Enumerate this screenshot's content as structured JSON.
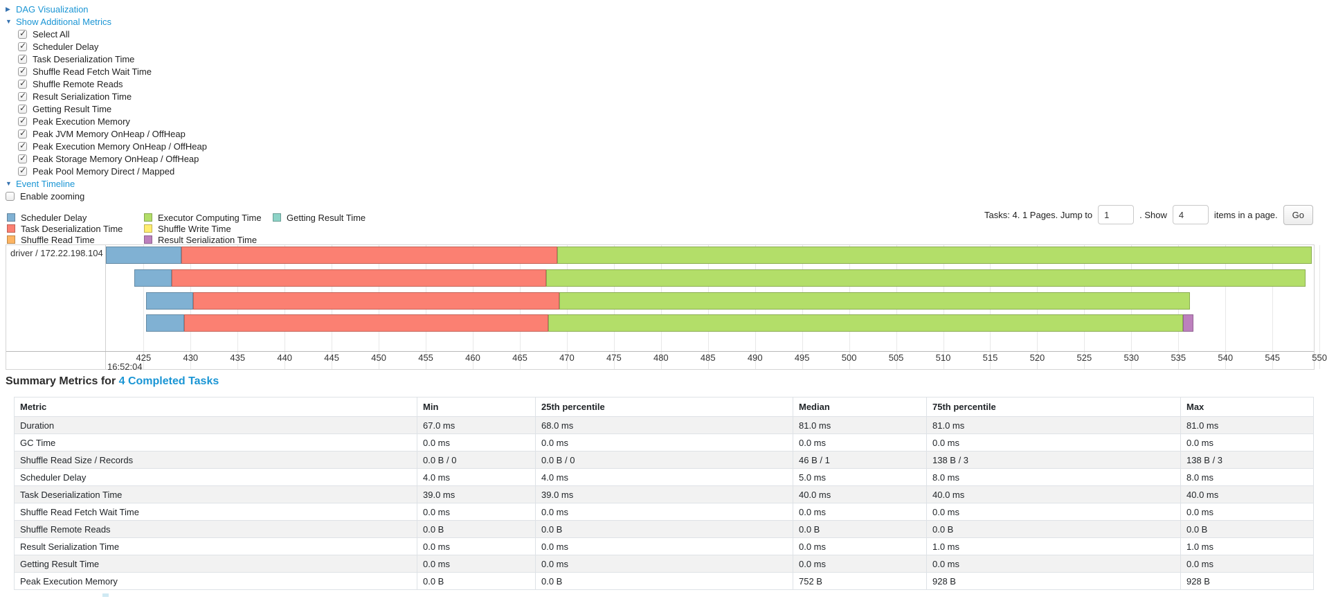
{
  "panels": {
    "dag": {
      "label": "DAG Visualization",
      "arrow": "▶"
    },
    "additional_metrics": {
      "label": "Show Additional Metrics",
      "arrow": "▼",
      "items": [
        {
          "label": "Select All",
          "checked": true
        },
        {
          "label": "Scheduler Delay",
          "checked": true
        },
        {
          "label": "Task Deserialization Time",
          "checked": true
        },
        {
          "label": "Shuffle Read Fetch Wait Time",
          "checked": true
        },
        {
          "label": "Shuffle Remote Reads",
          "checked": true
        },
        {
          "label": "Result Serialization Time",
          "checked": true
        },
        {
          "label": "Getting Result Time",
          "checked": true
        },
        {
          "label": "Peak Execution Memory",
          "checked": true
        },
        {
          "label": "Peak JVM Memory OnHeap / OffHeap",
          "checked": true
        },
        {
          "label": "Peak Execution Memory OnHeap / OffHeap",
          "checked": true
        },
        {
          "label": "Peak Storage Memory OnHeap / OffHeap",
          "checked": true
        },
        {
          "label": "Peak Pool Memory Direct / Mapped",
          "checked": true
        }
      ]
    },
    "event_timeline": {
      "label": "Event Timeline",
      "arrow": "▼",
      "enable_zooming": {
        "label": "Enable zooming",
        "checked": false
      }
    }
  },
  "pagination": {
    "tasks_text": "Tasks: 4. 1 Pages. Jump to",
    "jump_value": "1",
    "mid_text": ". Show",
    "page_size_value": "4",
    "suffix_text": "items in a page.",
    "go_label": "Go"
  },
  "colors": {
    "scheduler_delay": "#80B1D3",
    "task_deserialization": "#FB8072",
    "shuffle_read": "#FDB462",
    "executor_computing": "#B3DE69",
    "shuffle_write": "#FFED6F",
    "result_serialization": "#BC80BD",
    "getting_result": "#8DD3C7",
    "link": "#1a95d4"
  },
  "chart_data": {
    "type": "timeline",
    "group_label": "driver / 172.22.198.104",
    "axis": {
      "min": 421,
      "max": 549.4,
      "ticks": [
        425,
        430,
        435,
        440,
        445,
        450,
        455,
        460,
        465,
        470,
        475,
        480,
        485,
        490,
        495,
        500,
        505,
        510,
        515,
        520,
        525,
        530,
        535,
        540,
        545,
        550
      ],
      "major_label": "16:52:04"
    },
    "legend": [
      {
        "key": "scheduler_delay",
        "label": "Scheduler Delay"
      },
      {
        "key": "task_deserialization",
        "label": "Task Deserialization Time"
      },
      {
        "key": "shuffle_read",
        "label": "Shuffle Read Time"
      },
      {
        "key": "executor_computing",
        "label": "Executor Computing Time"
      },
      {
        "key": "shuffle_write",
        "label": "Shuffle Write Time"
      },
      {
        "key": "result_serialization",
        "label": "Result Serialization Time"
      },
      {
        "key": "getting_result",
        "label": "Getting Result Time"
      }
    ],
    "tasks": [
      {
        "segments": [
          {
            "key": "scheduler_delay",
            "from": 421.0,
            "to": 429.0
          },
          {
            "key": "task_deserialization",
            "from": 429.0,
            "to": 469.0
          },
          {
            "key": "executor_computing",
            "from": 469.0,
            "to": 549.2
          }
        ]
      },
      {
        "segments": [
          {
            "key": "scheduler_delay",
            "from": 424.0,
            "to": 428.0
          },
          {
            "key": "task_deserialization",
            "from": 428.0,
            "to": 467.8
          },
          {
            "key": "executor_computing",
            "from": 467.8,
            "to": 548.5
          }
        ]
      },
      {
        "segments": [
          {
            "key": "scheduler_delay",
            "from": 425.3,
            "to": 430.3
          },
          {
            "key": "task_deserialization",
            "from": 430.3,
            "to": 469.2
          },
          {
            "key": "executor_computing",
            "from": 469.2,
            "to": 536.2
          }
        ]
      },
      {
        "segments": [
          {
            "key": "scheduler_delay",
            "from": 425.3,
            "to": 429.3
          },
          {
            "key": "task_deserialization",
            "from": 429.3,
            "to": 468.0
          },
          {
            "key": "executor_computing",
            "from": 468.0,
            "to": 535.5
          },
          {
            "key": "result_serialization",
            "from": 535.5,
            "to": 536.6
          }
        ]
      }
    ]
  },
  "summary": {
    "title_prefix": "Summary Metrics for ",
    "title_link": "4 Completed Tasks",
    "columns": [
      "Metric",
      "Min",
      "25th percentile",
      "Median",
      "75th percentile",
      "Max"
    ],
    "rows": [
      [
        "Duration",
        "67.0 ms",
        "68.0 ms",
        "81.0 ms",
        "81.0 ms",
        "81.0 ms"
      ],
      [
        "GC Time",
        "0.0 ms",
        "0.0 ms",
        "0.0 ms",
        "0.0 ms",
        "0.0 ms"
      ],
      [
        "Shuffle Read Size / Records",
        "0.0 B / 0",
        "0.0 B / 0",
        "46 B / 1",
        "138 B / 3",
        "138 B / 3"
      ],
      [
        "Scheduler Delay",
        "4.0 ms",
        "4.0 ms",
        "5.0 ms",
        "8.0 ms",
        "8.0 ms"
      ],
      [
        "Task Deserialization Time",
        "39.0 ms",
        "39.0 ms",
        "40.0 ms",
        "40.0 ms",
        "40.0 ms"
      ],
      [
        "Shuffle Read Fetch Wait Time",
        "0.0 ms",
        "0.0 ms",
        "0.0 ms",
        "0.0 ms",
        "0.0 ms"
      ],
      [
        "Shuffle Remote Reads",
        "0.0 B",
        "0.0 B",
        "0.0 B",
        "0.0 B",
        "0.0 B"
      ],
      [
        "Result Serialization Time",
        "0.0 ms",
        "0.0 ms",
        "0.0 ms",
        "1.0 ms",
        "1.0 ms"
      ],
      [
        "Getting Result Time",
        "0.0 ms",
        "0.0 ms",
        "0.0 ms",
        "0.0 ms",
        "0.0 ms"
      ],
      [
        "Peak Execution Memory",
        "0.0 B",
        "0.0 B",
        "752 B",
        "928 B",
        "928 B"
      ]
    ]
  }
}
